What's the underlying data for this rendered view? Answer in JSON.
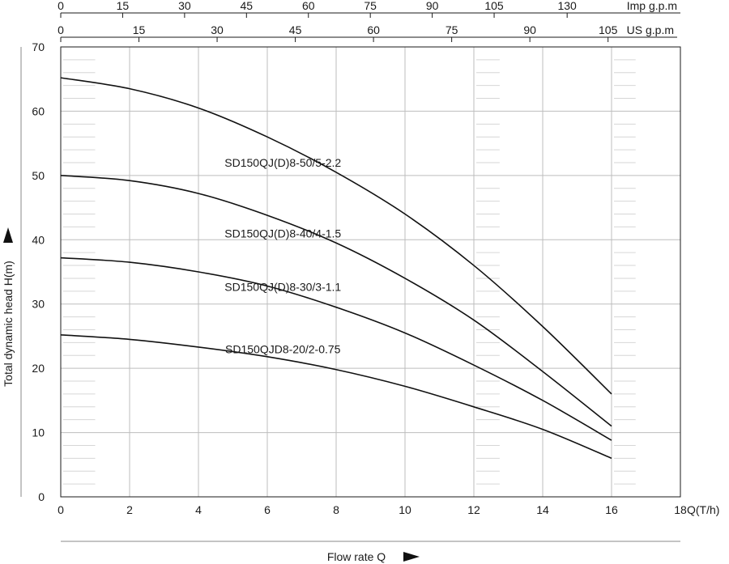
{
  "chart_data": {
    "type": "line",
    "title": "",
    "xlabel": "Flow rate Q",
    "xunit_label": "Q(T/h)",
    "ylabel": "Total dynamic head  H(m)",
    "xlim": [
      0,
      18
    ],
    "ylim": [
      0,
      70
    ],
    "x_ticks": [
      0,
      2,
      4,
      6,
      8,
      10,
      12,
      14,
      16,
      18
    ],
    "y_ticks": [
      0,
      10,
      20,
      30,
      40,
      50,
      60,
      70
    ],
    "grid": true,
    "top_axes": [
      {
        "label": "Imp g.p.m",
        "ticks": [
          "0",
          "15",
          "30",
          "45",
          "60",
          "75",
          "90",
          "105",
          "130"
        ]
      },
      {
        "label": "US g.p.m",
        "ticks": [
          "0",
          "15",
          "30",
          "45",
          "60",
          "75",
          "90",
          "105"
        ]
      }
    ],
    "series": [
      {
        "name": "SD150QJ(D)8-50/5-2.2",
        "x": [
          0,
          2,
          4,
          6,
          8,
          10,
          12,
          14,
          16
        ],
        "y": [
          65.2,
          63.5,
          60.5,
          56,
          50.5,
          44,
          36,
          26.5,
          16
        ]
      },
      {
        "name": "SD150QJ(D)8-40/4-1.5",
        "x": [
          0,
          2,
          4,
          6,
          8,
          10,
          12,
          14,
          16
        ],
        "y": [
          50,
          49.2,
          47.2,
          43.8,
          39.5,
          34,
          27.5,
          19.5,
          11
        ]
      },
      {
        "name": "SD150QJ(D)8-30/3-1.1",
        "x": [
          0,
          2,
          4,
          6,
          8,
          10,
          12,
          14,
          16
        ],
        "y": [
          37.2,
          36.5,
          35,
          32.8,
          29.5,
          25.5,
          20.5,
          15,
          8.8
        ]
      },
      {
        "name": "SD150QJD8-20/2-0.75",
        "x": [
          0,
          2,
          4,
          6,
          8,
          10,
          12,
          14,
          16
        ],
        "y": [
          25.2,
          24.5,
          23.3,
          21.8,
          19.8,
          17.2,
          14,
          10.5,
          6
        ]
      }
    ]
  }
}
